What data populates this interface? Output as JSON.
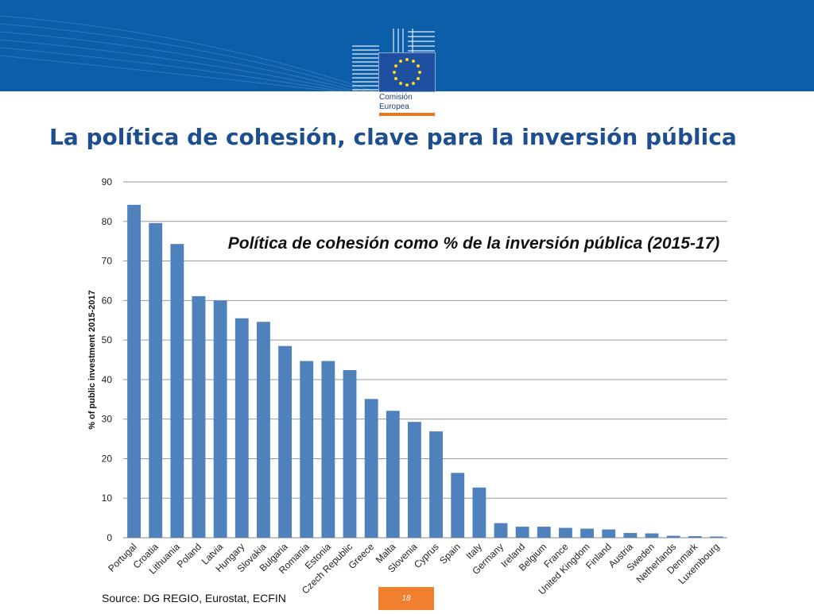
{
  "header": {
    "brand_line1": "Comisión",
    "brand_line2": "Europea",
    "colors": {
      "band": "#0c5ea8",
      "accent": "#e87722",
      "flag": "#1f4fa0",
      "stars": "#ffd617"
    }
  },
  "slide": {
    "title": "La política de cohesión, clave para la inversión pública",
    "source": "Source: DG REGIO, Eurostat, ECFIN",
    "page_number": "18"
  },
  "chart_data": {
    "type": "bar",
    "title": "Política de cohesión como % de la inversión pública (2015-17)",
    "xlabel": "",
    "ylabel": "% of public investment 2015-2017",
    "ylim": [
      0,
      90
    ],
    "yticks": [
      0,
      10,
      20,
      30,
      40,
      50,
      60,
      70,
      80,
      90
    ],
    "grid": true,
    "bar_color": "#4f81bd",
    "categories": [
      "Portugal",
      "Croatia",
      "Lithuania",
      "Poland",
      "Latvia",
      "Hungary",
      "Slovakia",
      "Bulgaria",
      "Romania",
      "Estonia",
      "Czech Republic",
      "Greece",
      "Malta",
      "Slovenia",
      "Cyprus",
      "Spain",
      "Italy",
      "Germany",
      "Ireland",
      "Belgium",
      "France",
      "United Kingdom",
      "Finland",
      "Austria",
      "Sweden",
      "Netherlands",
      "Denmark",
      "Luxembourg"
    ],
    "values": [
      84.2,
      79.6,
      74.3,
      61.1,
      60.0,
      55.5,
      54.6,
      48.5,
      44.7,
      44.7,
      42.4,
      35.1,
      32.1,
      29.3,
      26.9,
      16.4,
      12.7,
      3.7,
      2.8,
      2.8,
      2.5,
      2.3,
      2.1,
      1.2,
      1.1,
      0.5,
      0.4,
      0.3
    ]
  }
}
